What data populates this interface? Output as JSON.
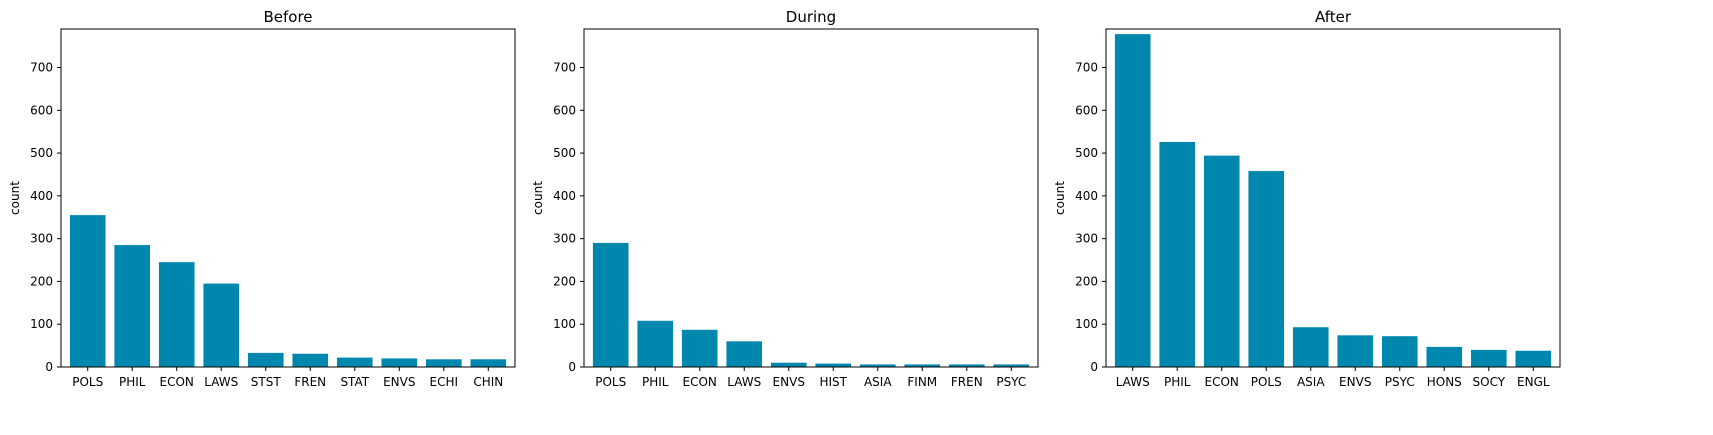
{
  "chart_data": [
    {
      "type": "bar",
      "title": "Before",
      "xlabel": "",
      "ylabel": "count",
      "ylim": [
        0,
        790
      ],
      "yticks": [
        0,
        100,
        200,
        300,
        400,
        500,
        600,
        700
      ],
      "categories": [
        "POLS",
        "PHIL",
        "ECON",
        "LAWS",
        "STST",
        "FREN",
        "STAT",
        "ENVS",
        "ECHI",
        "CHIN"
      ],
      "values": [
        355,
        285,
        245,
        195,
        33,
        31,
        22,
        20,
        18,
        18
      ],
      "bar_color": "#0087ad"
    },
    {
      "type": "bar",
      "title": "During",
      "xlabel": "",
      "ylabel": "count",
      "ylim": [
        0,
        790
      ],
      "yticks": [
        0,
        100,
        200,
        300,
        400,
        500,
        600,
        700
      ],
      "categories": [
        "POLS",
        "PHIL",
        "ECON",
        "LAWS",
        "ENVS",
        "HIST",
        "ASIA",
        "FINM",
        "FREN",
        "PSYC"
      ],
      "values": [
        290,
        108,
        87,
        60,
        10,
        8,
        6,
        6,
        6,
        6
      ],
      "bar_color": "#0087ad"
    },
    {
      "type": "bar",
      "title": "After",
      "xlabel": "",
      "ylabel": "count",
      "ylim": [
        0,
        790
      ],
      "yticks": [
        0,
        100,
        200,
        300,
        400,
        500,
        600,
        700
      ],
      "categories": [
        "LAWS",
        "PHIL",
        "ECON",
        "POLS",
        "ASIA",
        "ENVS",
        "PSYC",
        "HONS",
        "SOCY",
        "ENGL"
      ],
      "values": [
        778,
        526,
        494,
        458,
        93,
        74,
        72,
        47,
        40,
        38
      ],
      "bar_color": "#0087ad"
    }
  ]
}
